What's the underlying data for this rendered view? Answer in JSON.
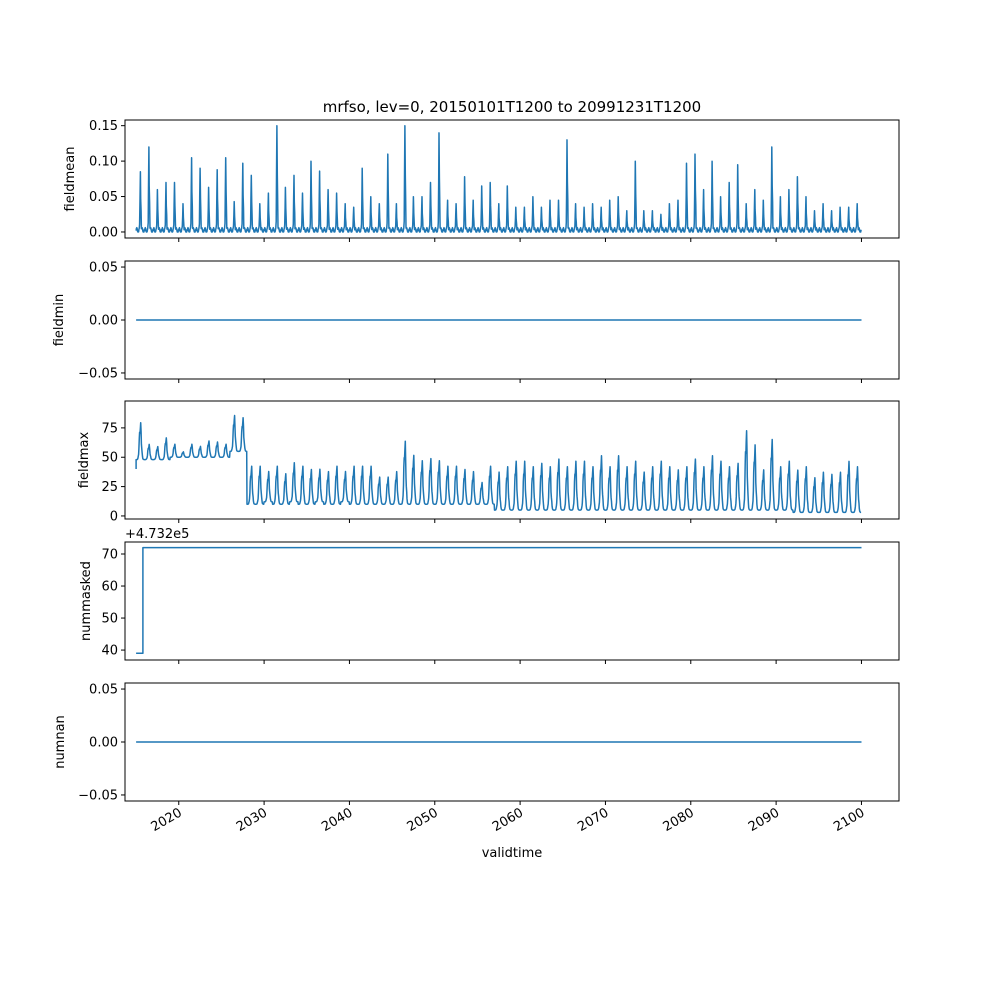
{
  "chart_data": {
    "type": "line",
    "title": "mrfso, lev=0, 20150101T1200 to 20991231T1200",
    "xlabel": "validtime",
    "xlim": [
      2013.7,
      2104.4
    ],
    "xticks": [
      2020,
      2030,
      2040,
      2050,
      2060,
      2070,
      2080,
      2090,
      2100
    ],
    "line_color": "#1f77b4",
    "years": [
      2015,
      2099
    ],
    "panels": [
      {
        "ylabel": "fieldmean",
        "ylim": [
          -0.0085,
          0.158
        ],
        "yticks": [
          0.0,
          0.05,
          0.1,
          0.15
        ],
        "ytick_labels": [
          "0.00",
          "0.05",
          "0.10",
          "0.15"
        ],
        "series_kind": "annual_peaks",
        "annual_peak": [
          0.085,
          0.12,
          0.06,
          0.07,
          0.07,
          0.04,
          0.105,
          0.09,
          0.063,
          0.088,
          0.105,
          0.043,
          0.097,
          0.08,
          0.04,
          0.055,
          0.15,
          0.063,
          0.08,
          0.055,
          0.1,
          0.086,
          0.06,
          0.055,
          0.04,
          0.035,
          0.09,
          0.05,
          0.04,
          0.11,
          0.04,
          0.15,
          0.05,
          0.05,
          0.07,
          0.14,
          0.045,
          0.04,
          0.078,
          0.045,
          0.065,
          0.07,
          0.04,
          0.065,
          0.035,
          0.035,
          0.05,
          0.035,
          0.045,
          0.045,
          0.13,
          0.04,
          0.035,
          0.04,
          0.035,
          0.045,
          0.05,
          0.03,
          0.1,
          0.03,
          0.03,
          0.025,
          0.04,
          0.045,
          0.097,
          0.11,
          0.06,
          0.1,
          0.05,
          0.07,
          0.095,
          0.04,
          0.06,
          0.045,
          0.12,
          0.05,
          0.06,
          0.078,
          0.05,
          0.03,
          0.04,
          0.03,
          0.035,
          0.035,
          0.04
        ],
        "baseline": 0.002
      },
      {
        "ylabel": "fieldmin",
        "ylim": [
          -0.0557,
          0.0557
        ],
        "yticks": [
          -0.05,
          0.0,
          0.05
        ],
        "ytick_labels": [
          "−0.05",
          "0.00",
          "0.05"
        ],
        "series_kind": "constant",
        "value": 0.0
      },
      {
        "ylabel": "fieldmax",
        "ylim": [
          -2.6,
          97.9
        ],
        "yticks": [
          0,
          25,
          50,
          75
        ],
        "ytick_labels": [
          "0",
          "25",
          "50",
          "75"
        ],
        "series_kind": "annual_range",
        "annual_peak": [
          82,
          62,
          60,
          68,
          62,
          55,
          62,
          60,
          65,
          64,
          62,
          88,
          86,
          45,
          45,
          40,
          45,
          38,
          48,
          45,
          42,
          42,
          40,
          45,
          40,
          45,
          45,
          45,
          35,
          35,
          40,
          68,
          55,
          50,
          52,
          50,
          45,
          45,
          42,
          40,
          30,
          45,
          40,
          45,
          50,
          50,
          45,
          48,
          45,
          52,
          45,
          50,
          50,
          45,
          55,
          45,
          55,
          45,
          50,
          40,
          45,
          50,
          45,
          42,
          45,
          52,
          45,
          55,
          50,
          45,
          48,
          78,
          65,
          42,
          70,
          45,
          50,
          42,
          45,
          35,
          40,
          38,
          40,
          50,
          45
        ],
        "annual_low": [
          48,
          48,
          48,
          48,
          50,
          50,
          50,
          50,
          50,
          50,
          50,
          55,
          55,
          10,
          10,
          12,
          10,
          10,
          12,
          10,
          10,
          12,
          10,
          10,
          12,
          10,
          10,
          10,
          10,
          10,
          10,
          10,
          10,
          10,
          10,
          10,
          10,
          10,
          10,
          10,
          10,
          10,
          5,
          5,
          5,
          5,
          5,
          5,
          5,
          5,
          5,
          5,
          5,
          5,
          5,
          5,
          5,
          5,
          5,
          5,
          5,
          5,
          5,
          5,
          5,
          5,
          5,
          5,
          5,
          5,
          5,
          5,
          5,
          5,
          5,
          5,
          5,
          3,
          3,
          3,
          3,
          3,
          3,
          3,
          3
        ]
      },
      {
        "ylabel": "nummasked",
        "ylim": [
          36.9,
          73.75
        ],
        "offset_text": "+4.732e5",
        "yticks": [
          40,
          50,
          60,
          70
        ],
        "ytick_labels": [
          "40",
          "50",
          "60",
          "70"
        ],
        "series_kind": "step",
        "step_x": 2015.8,
        "before": 39,
        "after": 72
      },
      {
        "ylabel": "numnan",
        "ylim": [
          -0.0557,
          0.0557
        ],
        "yticks": [
          -0.05,
          0.0,
          0.05
        ],
        "ytick_labels": [
          "−0.05",
          "0.00",
          "0.05"
        ],
        "series_kind": "constant",
        "value": 0.0
      }
    ]
  }
}
